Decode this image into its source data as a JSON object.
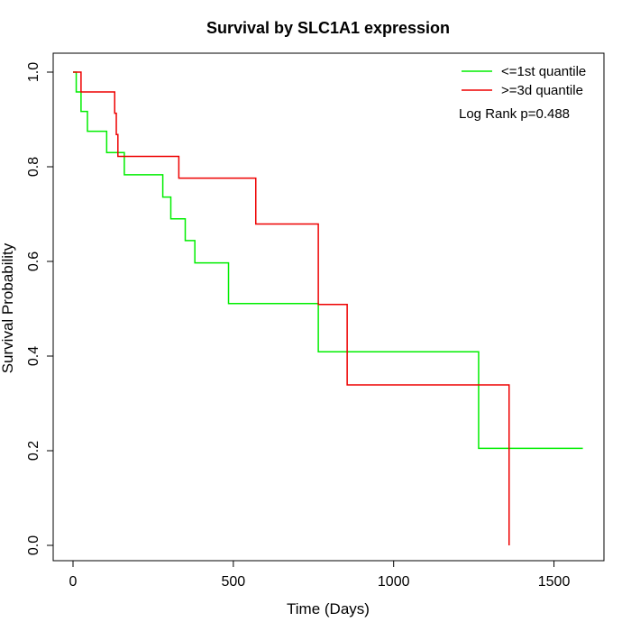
{
  "chart_data": {
    "type": "line",
    "subtype": "kaplan-meier step",
    "title": "Survival by SLC1A1 expression",
    "xlabel": "Time (Days)",
    "ylabel": "Survival Probability",
    "xlim": [
      0,
      1600
    ],
    "ylim": [
      0,
      1.0
    ],
    "x_ticks": [
      "0",
      "500",
      "1000",
      "1500"
    ],
    "y_ticks": [
      "0.0",
      "0.2",
      "0.4",
      "0.6",
      "0.8",
      "1.0"
    ],
    "grid": false,
    "legend_position": "top-right",
    "annotation": "Log Rank p=0.488",
    "series": [
      {
        "name": "<=1st quantile",
        "color": "#00ee00",
        "x": [
          0,
          10,
          25,
          45,
          105,
          160,
          280,
          305,
          350,
          380,
          485,
          765,
          1265,
          1590
        ],
        "y": [
          1.0,
          0.958,
          0.917,
          0.875,
          0.83,
          0.783,
          0.736,
          0.69,
          0.644,
          0.597,
          0.511,
          0.409,
          0.205,
          0.205
        ]
      },
      {
        "name": ">=3d quantile",
        "color": "#ee0000",
        "x": [
          0,
          25,
          130,
          135,
          140,
          330,
          570,
          765,
          855,
          1360,
          1360
        ],
        "y": [
          1.0,
          0.958,
          0.913,
          0.868,
          0.822,
          0.776,
          0.679,
          0.509,
          0.339,
          0.339,
          0.0
        ]
      }
    ]
  }
}
